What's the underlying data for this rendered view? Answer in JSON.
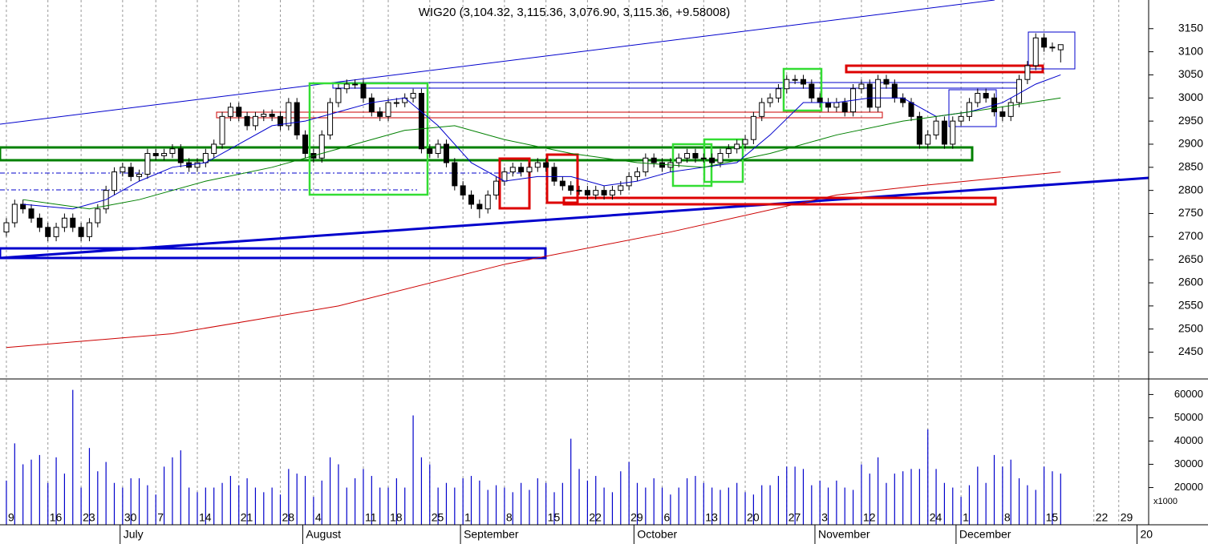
{
  "chart_data": [
    {
      "type": "candlestick",
      "title": "WIG20 (3,104.32, 3,115.36, 3,076.90, 3,115.36, +9.58008)",
      "ohlc": [
        [
          2710,
          2740,
          2700,
          2730
        ],
        [
          2730,
          2780,
          2720,
          2770
        ],
        [
          2770,
          2780,
          2750,
          2760
        ],
        [
          2760,
          2770,
          2730,
          2740
        ],
        [
          2740,
          2750,
          2710,
          2720
        ],
        [
          2720,
          2730,
          2690,
          2700
        ],
        [
          2700,
          2730,
          2690,
          2720
        ],
        [
          2720,
          2750,
          2710,
          2740
        ],
        [
          2740,
          2750,
          2710,
          2720
        ],
        [
          2720,
          2730,
          2690,
          2700
        ],
        [
          2700,
          2740,
          2690,
          2730
        ],
        [
          2730,
          2770,
          2720,
          2760
        ],
        [
          2760,
          2810,
          2750,
          2800
        ],
        [
          2800,
          2850,
          2790,
          2840
        ],
        [
          2840,
          2860,
          2830,
          2850
        ],
        [
          2850,
          2860,
          2820,
          2830
        ],
        [
          2830,
          2845,
          2820,
          2835
        ],
        [
          2835,
          2890,
          2825,
          2880
        ],
        [
          2880,
          2890,
          2865,
          2875
        ],
        [
          2875,
          2890,
          2865,
          2880
        ],
        [
          2880,
          2900,
          2870,
          2890
        ],
        [
          2890,
          2900,
          2850,
          2860
        ],
        [
          2860,
          2870,
          2840,
          2850
        ],
        [
          2850,
          2870,
          2840,
          2860
        ],
        [
          2860,
          2890,
          2850,
          2880
        ],
        [
          2880,
          2910,
          2870,
          2900
        ],
        [
          2900,
          2970,
          2890,
          2960
        ],
        [
          2960,
          2990,
          2950,
          2980
        ],
        [
          2980,
          2990,
          2950,
          2960
        ],
        [
          2960,
          2970,
          2930,
          2940
        ],
        [
          2940,
          2970,
          2930,
          2960
        ],
        [
          2960,
          2975,
          2950,
          2965
        ],
        [
          2965,
          2975,
          2950,
          2960
        ],
        [
          2960,
          2970,
          2930,
          2940
        ],
        [
          2940,
          3000,
          2930,
          2990
        ],
        [
          2990,
          3000,
          2910,
          2920
        ],
        [
          2920,
          2930,
          2870,
          2880
        ],
        [
          2880,
          2890,
          2860,
          2870
        ],
        [
          2870,
          2930,
          2860,
          2920
        ],
        [
          2920,
          3000,
          2910,
          2990
        ],
        [
          2990,
          3030,
          2980,
          3020
        ],
        [
          3020,
          3040,
          3010,
          3030
        ],
        [
          3030,
          3040,
          3020,
          3030
        ],
        [
          3030,
          3040,
          2990,
          3000
        ],
        [
          3000,
          3010,
          2960,
          2970
        ],
        [
          2970,
          2980,
          2950,
          2960
        ],
        [
          2960,
          3000,
          2950,
          2990
        ],
        [
          2990,
          3000,
          2980,
          2990
        ],
        [
          2990,
          3010,
          2980,
          3000
        ],
        [
          3000,
          3020,
          2990,
          3010
        ],
        [
          3010,
          3020,
          2880,
          2890
        ],
        [
          2890,
          2900,
          2870,
          2880
        ],
        [
          2880,
          2910,
          2870,
          2900
        ],
        [
          2900,
          2910,
          2850,
          2860
        ],
        [
          2860,
          2870,
          2800,
          2810
        ],
        [
          2810,
          2820,
          2780,
          2790
        ],
        [
          2790,
          2800,
          2760,
          2770
        ],
        [
          2770,
          2780,
          2740,
          2760
        ],
        [
          2760,
          2800,
          2750,
          2790
        ],
        [
          2790,
          2830,
          2780,
          2820
        ],
        [
          2820,
          2850,
          2810,
          2840
        ],
        [
          2840,
          2860,
          2830,
          2850
        ],
        [
          2850,
          2860,
          2830,
          2840
        ],
        [
          2840,
          2860,
          2830,
          2850
        ],
        [
          2850,
          2870,
          2840,
          2860
        ],
        [
          2860,
          2870,
          2840,
          2850
        ],
        [
          2850,
          2860,
          2810,
          2820
        ],
        [
          2820,
          2830,
          2800,
          2810
        ],
        [
          2810,
          2820,
          2790,
          2800
        ],
        [
          2800,
          2810,
          2790,
          2800
        ],
        [
          2800,
          2810,
          2780,
          2790
        ],
        [
          2790,
          2810,
          2780,
          2800
        ],
        [
          2800,
          2810,
          2780,
          2790
        ],
        [
          2790,
          2810,
          2780,
          2800
        ],
        [
          2800,
          2820,
          2790,
          2810
        ],
        [
          2810,
          2840,
          2800,
          2830
        ],
        [
          2830,
          2850,
          2820,
          2840
        ],
        [
          2840,
          2880,
          2830,
          2870
        ],
        [
          2870,
          2880,
          2850,
          2860
        ],
        [
          2860,
          2870,
          2840,
          2850
        ],
        [
          2850,
          2870,
          2840,
          2860
        ],
        [
          2860,
          2880,
          2850,
          2870
        ],
        [
          2870,
          2890,
          2860,
          2880
        ],
        [
          2880,
          2890,
          2860,
          2870
        ],
        [
          2870,
          2880,
          2860,
          2870
        ],
        [
          2870,
          2880,
          2850,
          2860
        ],
        [
          2860,
          2890,
          2850,
          2880
        ],
        [
          2880,
          2900,
          2870,
          2890
        ],
        [
          2890,
          2910,
          2880,
          2900
        ],
        [
          2900,
          2920,
          2890,
          2910
        ],
        [
          2910,
          2970,
          2900,
          2960
        ],
        [
          2960,
          3000,
          2950,
          2990
        ],
        [
          2990,
          3010,
          2980,
          3000
        ],
        [
          3000,
          3030,
          2990,
          3020
        ],
        [
          3020,
          3050,
          3010,
          3040
        ],
        [
          3040,
          3050,
          3030,
          3040
        ],
        [
          3040,
          3050,
          3020,
          3030
        ],
        [
          3030,
          3040,
          2990,
          3000
        ],
        [
          3000,
          3010,
          2980,
          2990
        ],
        [
          2990,
          3000,
          2970,
          2980
        ],
        [
          2980,
          3000,
          2970,
          2990
        ],
        [
          2990,
          3000,
          2960,
          2970
        ],
        [
          2970,
          3030,
          2960,
          3020
        ],
        [
          3020,
          3040,
          3010,
          3030
        ],
        [
          3030,
          3040,
          2970,
          2980
        ],
        [
          2980,
          3050,
          2970,
          3040
        ],
        [
          3040,
          3050,
          3020,
          3030
        ],
        [
          3030,
          3040,
          2990,
          3000
        ],
        [
          3000,
          3010,
          2980,
          2990
        ],
        [
          2990,
          3000,
          2950,
          2960
        ],
        [
          2960,
          2970,
          2890,
          2900
        ],
        [
          2900,
          2930,
          2890,
          2920
        ],
        [
          2920,
          2960,
          2910,
          2950
        ],
        [
          2950,
          2960,
          2890,
          2900
        ],
        [
          2900,
          2960,
          2890,
          2950
        ],
        [
          2950,
          2970,
          2940,
          2960
        ],
        [
          2960,
          3000,
          2950,
          2990
        ],
        [
          2990,
          3020,
          2980,
          3010
        ],
        [
          3010,
          3020,
          2990,
          3000
        ],
        [
          3000,
          3010,
          2960,
          2970
        ],
        [
          2970,
          2980,
          2950,
          2960
        ],
        [
          2960,
          3000,
          2950,
          2990
        ],
        [
          2990,
          3050,
          2980,
          3040
        ],
        [
          3040,
          3080,
          3030,
          3070
        ],
        [
          3070,
          3140,
          3060,
          3130
        ],
        [
          3130,
          3140,
          3100,
          3110
        ],
        [
          3110,
          3120,
          3100,
          3110
        ],
        [
          3104.32,
          3115.36,
          3076.9,
          3115.36
        ]
      ],
      "lines": [
        {
          "color": "#0000cc",
          "x": [
            2,
            8,
            12,
            16,
            20,
            24,
            28,
            32,
            36,
            40,
            44,
            48,
            52,
            56,
            60,
            64,
            68,
            72,
            76,
            80,
            84,
            88,
            92,
            96,
            100,
            104,
            108,
            112,
            116,
            120,
            124,
            127
          ],
          "values": [
            2770,
            2760,
            2780,
            2820,
            2850,
            2860,
            2900,
            2940,
            2950,
            2970,
            2990,
            3000,
            2940,
            2860,
            2820,
            2830,
            2830,
            2810,
            2820,
            2840,
            2850,
            2860,
            2920,
            2990,
            2990,
            3000,
            3000,
            2960,
            2970,
            2990,
            3030,
            3050
          ]
        },
        {
          "color": "#008000",
          "x": [
            2,
            10,
            16,
            24,
            32,
            40,
            48,
            54,
            60,
            68,
            76,
            84,
            92,
            100,
            108,
            116,
            127
          ],
          "values": [
            2780,
            2760,
            2780,
            2820,
            2850,
            2890,
            2930,
            2940,
            2910,
            2880,
            2860,
            2850,
            2880,
            2920,
            2950,
            2970,
            3000
          ]
        },
        {
          "color": "#cc0000",
          "x": [
            0,
            20,
            40,
            60,
            80,
            100,
            110,
            127
          ],
          "values": [
            2460,
            2490,
            2550,
            2640,
            2710,
            2790,
            2810,
            2840
          ]
        }
      ],
      "xlim": [
        -0.77,
        137.6
      ],
      "xticks": [
        {
          "value": 0,
          "label": "9"
        },
        {
          "value": 5,
          "label": "16"
        },
        {
          "value": 9,
          "label": "23"
        },
        {
          "value": 14,
          "label": "30"
        },
        {
          "value": 18,
          "label": "7"
        },
        {
          "value": 23,
          "label": "14"
        },
        {
          "value": 28,
          "label": "21"
        },
        {
          "value": 33,
          "label": "28"
        },
        {
          "value": 37,
          "label": "4"
        },
        {
          "value": 43,
          "label": "11"
        },
        {
          "value": 46,
          "label": "18"
        },
        {
          "value": 51,
          "label": "25"
        },
        {
          "value": 55,
          "label": "1"
        },
        {
          "value": 60,
          "label": "8"
        },
        {
          "value": 65,
          "label": "15"
        },
        {
          "value": 70,
          "label": "22"
        },
        {
          "value": 75,
          "label": "29"
        },
        {
          "value": 79,
          "label": "6"
        },
        {
          "value": 84,
          "label": "13"
        },
        {
          "value": 89,
          "label": "20"
        },
        {
          "value": 94,
          "label": "27"
        },
        {
          "value": 98,
          "label": "3"
        },
        {
          "value": 103,
          "label": "12"
        },
        {
          "value": 111,
          "label": "24"
        },
        {
          "value": 115,
          "label": "1"
        },
        {
          "value": 120,
          "label": "8"
        },
        {
          "value": 125,
          "label": "15"
        },
        {
          "value": 131,
          "label": "22"
        },
        {
          "value": 134,
          "label": "29"
        }
      ],
      "month_ticks": [
        {
          "value": 13.7,
          "label": "July"
        },
        {
          "value": 35.7,
          "label": "August"
        },
        {
          "value": 54.7,
          "label": "September"
        },
        {
          "value": 75.6,
          "label": "October"
        },
        {
          "value": 97.4,
          "label": "November"
        },
        {
          "value": 114.4,
          "label": "December"
        },
        {
          "value": 136.2,
          "label": "20"
        }
      ],
      "ylim": [
        2392,
        3212
      ],
      "yticks": [
        2450,
        2500,
        2550,
        2600,
        2650,
        2700,
        2750,
        2800,
        2850,
        2900,
        2950,
        3000,
        3050,
        3100,
        3150
      ]
    },
    {
      "type": "bar",
      "color": "#0000cc",
      "unit_label": "x1000",
      "values": [
        23000,
        39000,
        30000,
        32000,
        34000,
        22000,
        33000,
        26000,
        62000,
        20000,
        37000,
        27000,
        31000,
        22000,
        20000,
        24000,
        24000,
        21000,
        17000,
        29000,
        33000,
        36000,
        20000,
        18000,
        20000,
        20000,
        22000,
        25000,
        21000,
        24000,
        20000,
        18000,
        20000,
        17000,
        28000,
        26000,
        25000,
        16000,
        23000,
        33000,
        30000,
        20000,
        24000,
        28000,
        25000,
        20000,
        20000,
        24000,
        20000,
        51000,
        33000,
        30000,
        20000,
        22000,
        20000,
        24000,
        25000,
        23000,
        19000,
        21000,
        20000,
        18000,
        22000,
        19000,
        24000,
        22000,
        18000,
        22000,
        41000,
        28000,
        23000,
        25000,
        20000,
        18000,
        27000,
        31000,
        22000,
        20000,
        24000,
        20000,
        17000,
        20000,
        24000,
        25000,
        22000,
        20000,
        19000,
        20000,
        22000,
        18000,
        17000,
        21000,
        21000,
        25000,
        29000,
        29000,
        28000,
        21000,
        23000,
        20000,
        23000,
        20000,
        19000,
        30000,
        26000,
        33000,
        22000,
        26000,
        27000,
        28000,
        28000,
        45000,
        28000,
        22000,
        20000,
        16000,
        21000,
        29000,
        22000,
        34000,
        29000,
        32000,
        24000,
        21000,
        19000,
        29000,
        27000,
        26000
      ],
      "ylim": [
        4000,
        66000
      ],
      "yticks": [
        20000,
        30000,
        40000,
        50000,
        60000
      ]
    }
  ]
}
